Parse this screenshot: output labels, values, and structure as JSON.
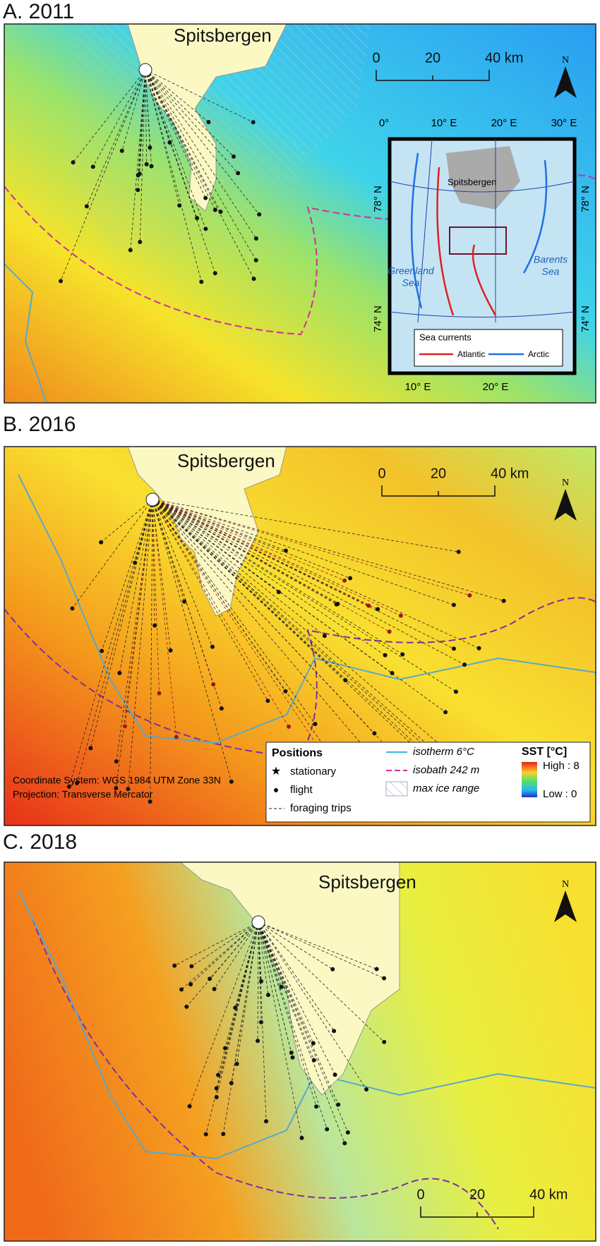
{
  "panels": [
    {
      "label": "A. 2011",
      "island": "Spitsbergen",
      "scale": [
        "0",
        "20",
        "40 km"
      ],
      "north": "N"
    },
    {
      "label": "B. 2016",
      "island": "Spitsbergen",
      "scale": [
        "0",
        "20",
        "40 km"
      ],
      "north": "N"
    },
    {
      "label": "C. 2018",
      "island": "Spitsbergen",
      "scale": [
        "0",
        "20",
        "40 km"
      ],
      "north": "N"
    }
  ],
  "inset": {
    "top_lon": [
      "0°",
      "10° E",
      "20° E",
      "30° E"
    ],
    "lat_left": [
      "78° N",
      "74° N"
    ],
    "lat_right": [
      "78° N",
      "74° N"
    ],
    "island": "Spitsbergen",
    "sea_left": [
      "Greenland",
      "Sea"
    ],
    "sea_right": [
      "Barents",
      "Sea"
    ],
    "legend_title": "Sea currents",
    "atlantic": "Atlantic",
    "arctic": "Arctic",
    "bottom_lon": [
      "10° E",
      "20° E"
    ]
  },
  "legend": {
    "positions": "Positions",
    "stationary": "stationary",
    "flight": "flight",
    "trips": "foraging trips",
    "isotherm": "isotherm 6°C",
    "isobath": "isobath 242 m",
    "ice": "max ice range",
    "sst": "SST [°C]",
    "high": "High : 8",
    "low": "Low : 0"
  },
  "notes": [
    "Coordinate System: WGS 1984 UTM Zone 33N",
    "Projection: Transverse Mercator"
  ]
}
